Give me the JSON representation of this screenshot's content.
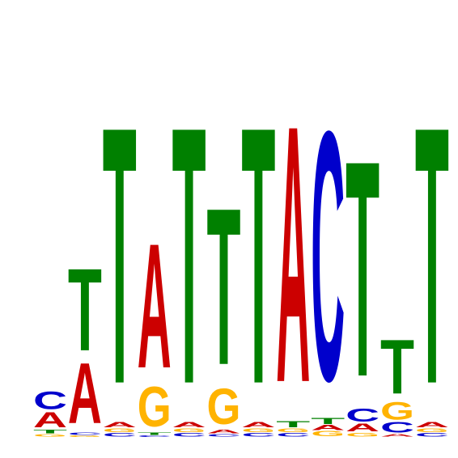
{
  "colors": {
    "A": "#cc0000",
    "C": "#0000cc",
    "G": "#ffb300",
    "T": "#008000"
  },
  "chart_data": {
    "type": "sequence-logo",
    "alphabet": [
      "A",
      "C",
      "G",
      "T"
    ],
    "columns": [
      {
        "position": 1,
        "stack": [
          {
            "base": "G",
            "bits": 0.02
          },
          {
            "base": "T",
            "bits": 0.03
          },
          {
            "base": "A",
            "bits": 0.12
          },
          {
            "base": "C",
            "bits": 0.14
          }
        ]
      },
      {
        "position": 2,
        "stack": [
          {
            "base": "G",
            "bits": 0.01
          },
          {
            "base": "C",
            "bits": 0.02
          },
          {
            "base": "A",
            "bits": 0.47
          },
          {
            "base": "T",
            "bits": 0.64
          }
        ]
      },
      {
        "position": 3,
        "stack": [
          {
            "base": "C",
            "bits": 0.03
          },
          {
            "base": "G",
            "bits": 0.03
          },
          {
            "base": "A",
            "bits": 0.04
          },
          {
            "base": "T",
            "bits": 2.0
          }
        ]
      },
      {
        "position": 4,
        "stack": [
          {
            "base": "C",
            "bits": 0.01
          },
          {
            "base": "T",
            "bits": 0.02
          },
          {
            "base": "G",
            "bits": 0.31
          },
          {
            "base": "A",
            "bits": 0.97
          }
        ]
      },
      {
        "position": 5,
        "stack": [
          {
            "base": "C",
            "bits": 0.03
          },
          {
            "base": "G",
            "bits": 0.03
          },
          {
            "base": "A",
            "bits": 0.04
          },
          {
            "base": "T",
            "bits": 2.0
          }
        ]
      },
      {
        "position": 6,
        "stack": [
          {
            "base": "C",
            "bits": 0.02
          },
          {
            "base": "A",
            "bits": 0.03
          },
          {
            "base": "G",
            "bits": 0.28
          },
          {
            "base": "T",
            "bits": 1.22
          }
        ]
      },
      {
        "position": 7,
        "stack": [
          {
            "base": "C",
            "bits": 0.03
          },
          {
            "base": "G",
            "bits": 0.03
          },
          {
            "base": "A",
            "bits": 0.04
          },
          {
            "base": "T",
            "bits": 2.0
          }
        ]
      },
      {
        "position": 8,
        "stack": [
          {
            "base": "C",
            "bits": 0.03
          },
          {
            "base": "G",
            "bits": 0.03
          },
          {
            "base": "T",
            "bits": 0.05
          },
          {
            "base": "A",
            "bits": 2.0
          }
        ]
      },
      {
        "position": 9,
        "stack": [
          {
            "base": "G",
            "bits": 0.04
          },
          {
            "base": "A",
            "bits": 0.04
          },
          {
            "base": "T",
            "bits": 0.05
          },
          {
            "base": "C",
            "bits": 1.94
          }
        ]
      },
      {
        "position": 10,
        "stack": [
          {
            "base": "G",
            "bits": 0.03
          },
          {
            "base": "A",
            "bits": 0.06
          },
          {
            "base": "C",
            "bits": 0.1
          },
          {
            "base": "T",
            "bits": 1.68
          }
        ]
      },
      {
        "position": 11,
        "stack": [
          {
            "base": "A",
            "bits": 0.02
          },
          {
            "base": "C",
            "bits": 0.08
          },
          {
            "base": "G",
            "bits": 0.14
          },
          {
            "base": "T",
            "bits": 0.42
          }
        ]
      },
      {
        "position": 12,
        "stack": [
          {
            "base": "C",
            "bits": 0.03
          },
          {
            "base": "G",
            "bits": 0.03
          },
          {
            "base": "A",
            "bits": 0.04
          },
          {
            "base": "T",
            "bits": 2.0
          }
        ]
      }
    ]
  }
}
